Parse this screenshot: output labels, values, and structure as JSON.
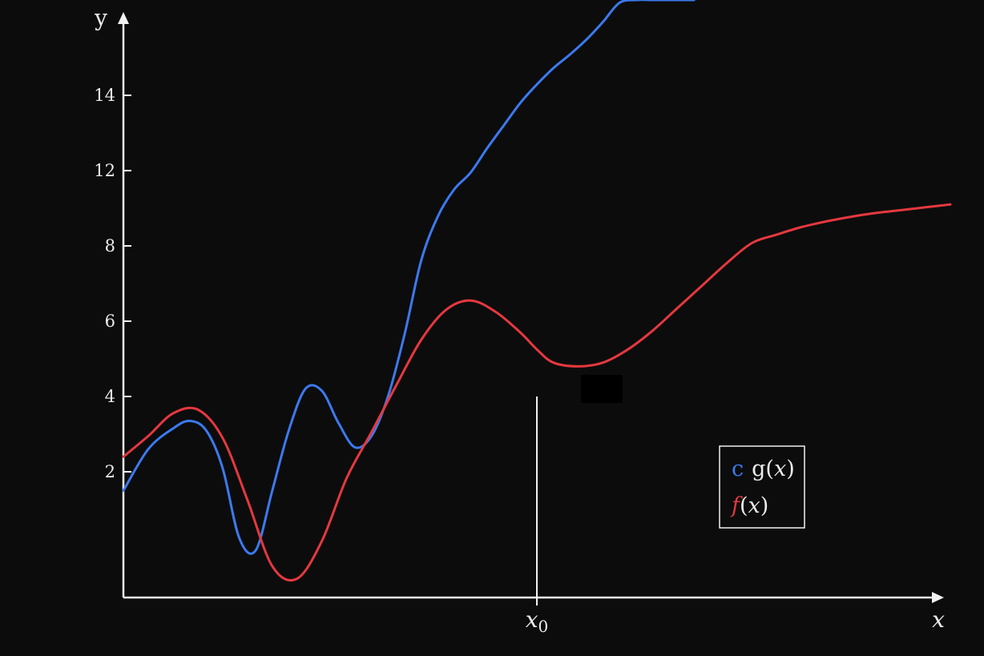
{
  "chart_data": {
    "type": "line",
    "x_label": "x",
    "y_label": "y",
    "y_ticks": [
      2,
      4,
      6,
      8,
      12,
      14
    ],
    "x_marker": {
      "label_base": "x",
      "label_sub": "0",
      "x": 0.5,
      "y": 4
    },
    "xlim": [
      0,
      1
    ],
    "grid": false,
    "legend_placement": "lower-right",
    "colors": {
      "background": "#0c0c0c",
      "axes": "#f2f2f2",
      "g": "#3b7af0",
      "f": "#e5383f"
    },
    "legend": [
      {
        "prefix": "c",
        "name": "g(x)",
        "base": "g",
        "var": "x"
      },
      {
        "prefix": "",
        "name": "f(x)",
        "base": "f",
        "var": "x"
      }
    ],
    "series": [
      {
        "key": "g",
        "name": "g(x)",
        "x": [
          0.0,
          0.03,
          0.06,
          0.08,
          0.1,
          0.12,
          0.14,
          0.16,
          0.18,
          0.2,
          0.22,
          0.24,
          0.26,
          0.28,
          0.3,
          0.32,
          0.34,
          0.36,
          0.38,
          0.4,
          0.42,
          0.44,
          0.46,
          0.48,
          0.5,
          0.52,
          0.54,
          0.56,
          0.58,
          0.6,
          0.62,
          0.64,
          0.66,
          0.68,
          0.69
        ],
        "y": [
          1.7,
          2.6,
          3.15,
          3.35,
          3.1,
          2.1,
          0.95,
          0.75,
          1.7,
          3.1,
          4.2,
          4.15,
          3.3,
          2.65,
          2.95,
          4.0,
          5.65,
          7.6,
          9.55,
          11.0,
          11.9,
          12.6,
          13.2,
          13.8,
          14.4,
          15.0,
          15.5,
          16.05,
          16.7,
          17.4,
          17.5,
          17.5,
          17.5,
          17.5,
          17.5
        ]
      },
      {
        "key": "f",
        "name": "f(x)",
        "x": [
          0.0,
          0.03,
          0.06,
          0.09,
          0.12,
          0.15,
          0.18,
          0.21,
          0.24,
          0.27,
          0.3,
          0.33,
          0.36,
          0.39,
          0.42,
          0.45,
          0.48,
          0.5,
          0.52,
          0.55,
          0.58,
          0.61,
          0.64,
          0.67,
          0.7,
          0.73,
          0.76,
          0.79,
          0.82,
          0.85,
          0.88,
          0.91,
          0.94,
          0.97,
          1.0
        ],
        "y": [
          2.4,
          2.95,
          3.55,
          3.65,
          2.9,
          1.55,
          0.5,
          0.3,
          0.9,
          1.9,
          3.05,
          4.3,
          5.5,
          6.3,
          6.55,
          6.25,
          5.7,
          5.25,
          4.9,
          4.8,
          4.9,
          5.25,
          5.75,
          6.35,
          6.95,
          7.55,
          8.15,
          8.6,
          9.0,
          9.3,
          9.55,
          9.75,
          9.9,
          10.05,
          10.2
        ]
      }
    ]
  }
}
